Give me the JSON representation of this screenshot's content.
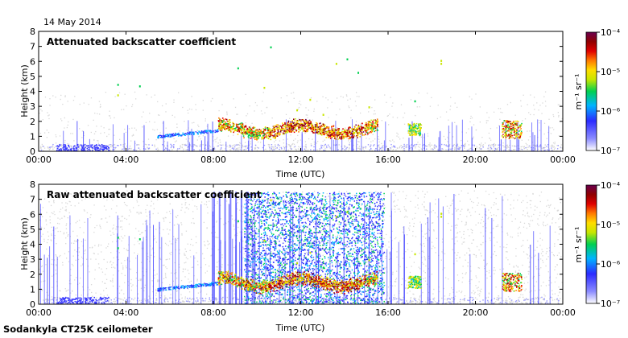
{
  "date": "14 May 2014",
  "footer": "Sodankyla CT25K ceilometer",
  "colorbar": {
    "unit_label": "m⁻¹ sr⁻¹",
    "ticks": [
      "10⁻⁴",
      "10⁻⁵",
      "10⁻⁶",
      "10⁻⁷"
    ],
    "tick_values": [
      -4,
      -5,
      -6,
      -7
    ],
    "colors": [
      "#ffffff",
      "#7b7bff",
      "#2b2bff",
      "#00b4ff",
      "#00d050",
      "#c8e600",
      "#ffdd00",
      "#ff7a00",
      "#e00000",
      "#900000",
      "#6a004f"
    ]
  },
  "chart_data": [
    {
      "type": "heatmap",
      "title": "Attenuated backscatter coefficient",
      "xlabel": "Time (UTC)",
      "ylabel": "Height (km)",
      "x_ticks": [
        "00:00",
        "04:00",
        "08:00",
        "12:00",
        "16:00",
        "20:00",
        "00:00"
      ],
      "x_tick_hours": [
        0,
        4,
        8,
        12,
        16,
        20,
        24
      ],
      "y_ticks": [
        "0",
        "1",
        "2",
        "3",
        "4",
        "5",
        "6",
        "7",
        "8"
      ],
      "ylim": [
        0,
        8
      ],
      "xlim_hours": [
        0,
        24
      ],
      "color_scale": "log",
      "clim_log10": [
        -7,
        -4
      ]
    },
    {
      "type": "heatmap",
      "title": "Raw attenuated backscatter coefficient",
      "xlabel": "Time (UTC)",
      "ylabel": "Height (km)",
      "x_ticks": [
        "00:00",
        "04:00",
        "08:00",
        "12:00",
        "16:00",
        "20:00",
        "00:00"
      ],
      "x_tick_hours": [
        0,
        4,
        8,
        12,
        16,
        20,
        24
      ],
      "y_ticks": [
        "0",
        "1",
        "2",
        "3",
        "4",
        "5",
        "6",
        "7",
        "8"
      ],
      "ylim": [
        0,
        8
      ],
      "xlim_hours": [
        0,
        24
      ],
      "color_scale": "log",
      "clim_log10": [
        -7,
        -4
      ]
    }
  ]
}
